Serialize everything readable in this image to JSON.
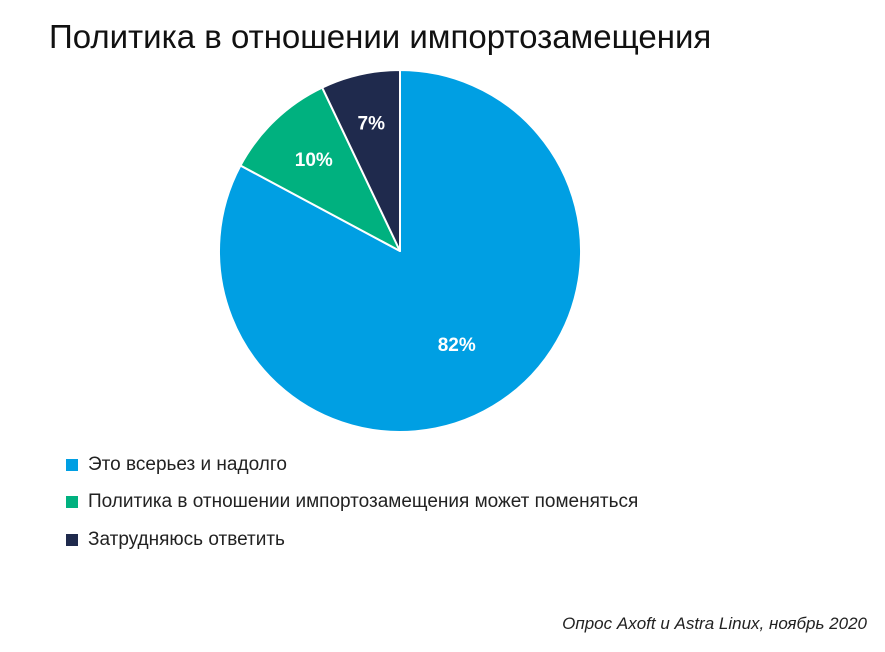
{
  "title": "Политика в отношении импортозамещения",
  "source": "Опрос Axoft и Astra Linux, ноябрь 2020",
  "chart_data": {
    "type": "pie",
    "start_angle_deg": 0,
    "direction": "clockwise",
    "slices": [
      {
        "label": "Это всерьез и надолго",
        "value": 82,
        "display": "82%",
        "color": "#009fe3"
      },
      {
        "label": "Политика в отношении импортозамещения может поменяться",
        "value": 10,
        "display": "10%",
        "color": "#00b17f"
      },
      {
        "label": "Затрудняюсь ответить",
        "value": 7,
        "display": "7%",
        "color": "#1f2a4d"
      }
    ],
    "legend_position": "bottom-left"
  }
}
